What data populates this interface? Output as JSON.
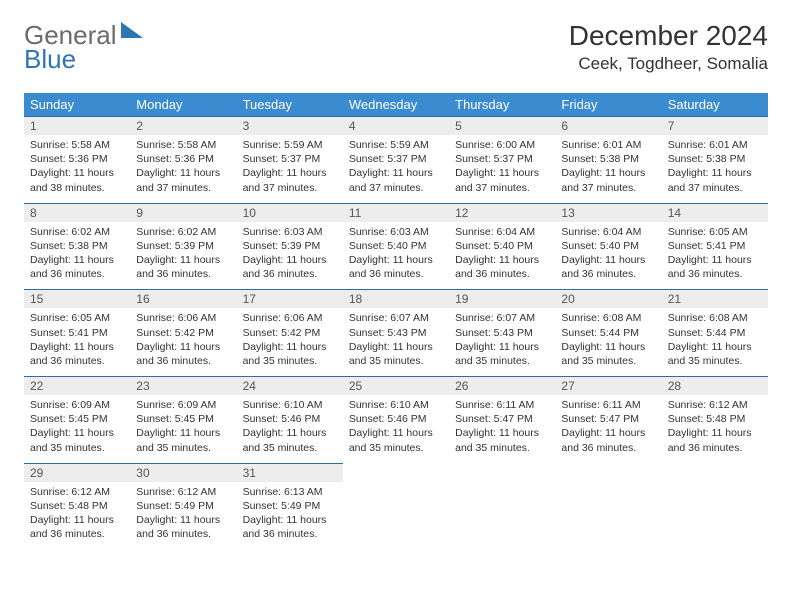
{
  "brand": {
    "word1": "General",
    "word2": "Blue"
  },
  "header": {
    "month_title": "December 2024",
    "location": "Ceek, Togdheer, Somalia"
  },
  "colors": {
    "header_bg": "#3a8bd0",
    "daynum_bg": "#ededed",
    "rule": "#2e6da4"
  },
  "weekdays": [
    "Sunday",
    "Monday",
    "Tuesday",
    "Wednesday",
    "Thursday",
    "Friday",
    "Saturday"
  ],
  "weeks": [
    [
      {
        "n": "1",
        "sunrise": "Sunrise: 5:58 AM",
        "sunset": "Sunset: 5:36 PM",
        "day": "Daylight: 11 hours and 38 minutes."
      },
      {
        "n": "2",
        "sunrise": "Sunrise: 5:58 AM",
        "sunset": "Sunset: 5:36 PM",
        "day": "Daylight: 11 hours and 37 minutes."
      },
      {
        "n": "3",
        "sunrise": "Sunrise: 5:59 AM",
        "sunset": "Sunset: 5:37 PM",
        "day": "Daylight: 11 hours and 37 minutes."
      },
      {
        "n": "4",
        "sunrise": "Sunrise: 5:59 AM",
        "sunset": "Sunset: 5:37 PM",
        "day": "Daylight: 11 hours and 37 minutes."
      },
      {
        "n": "5",
        "sunrise": "Sunrise: 6:00 AM",
        "sunset": "Sunset: 5:37 PM",
        "day": "Daylight: 11 hours and 37 minutes."
      },
      {
        "n": "6",
        "sunrise": "Sunrise: 6:01 AM",
        "sunset": "Sunset: 5:38 PM",
        "day": "Daylight: 11 hours and 37 minutes."
      },
      {
        "n": "7",
        "sunrise": "Sunrise: 6:01 AM",
        "sunset": "Sunset: 5:38 PM",
        "day": "Daylight: 11 hours and 37 minutes."
      }
    ],
    [
      {
        "n": "8",
        "sunrise": "Sunrise: 6:02 AM",
        "sunset": "Sunset: 5:38 PM",
        "day": "Daylight: 11 hours and 36 minutes."
      },
      {
        "n": "9",
        "sunrise": "Sunrise: 6:02 AM",
        "sunset": "Sunset: 5:39 PM",
        "day": "Daylight: 11 hours and 36 minutes."
      },
      {
        "n": "10",
        "sunrise": "Sunrise: 6:03 AM",
        "sunset": "Sunset: 5:39 PM",
        "day": "Daylight: 11 hours and 36 minutes."
      },
      {
        "n": "11",
        "sunrise": "Sunrise: 6:03 AM",
        "sunset": "Sunset: 5:40 PM",
        "day": "Daylight: 11 hours and 36 minutes."
      },
      {
        "n": "12",
        "sunrise": "Sunrise: 6:04 AM",
        "sunset": "Sunset: 5:40 PM",
        "day": "Daylight: 11 hours and 36 minutes."
      },
      {
        "n": "13",
        "sunrise": "Sunrise: 6:04 AM",
        "sunset": "Sunset: 5:40 PM",
        "day": "Daylight: 11 hours and 36 minutes."
      },
      {
        "n": "14",
        "sunrise": "Sunrise: 6:05 AM",
        "sunset": "Sunset: 5:41 PM",
        "day": "Daylight: 11 hours and 36 minutes."
      }
    ],
    [
      {
        "n": "15",
        "sunrise": "Sunrise: 6:05 AM",
        "sunset": "Sunset: 5:41 PM",
        "day": "Daylight: 11 hours and 36 minutes."
      },
      {
        "n": "16",
        "sunrise": "Sunrise: 6:06 AM",
        "sunset": "Sunset: 5:42 PM",
        "day": "Daylight: 11 hours and 36 minutes."
      },
      {
        "n": "17",
        "sunrise": "Sunrise: 6:06 AM",
        "sunset": "Sunset: 5:42 PM",
        "day": "Daylight: 11 hours and 35 minutes."
      },
      {
        "n": "18",
        "sunrise": "Sunrise: 6:07 AM",
        "sunset": "Sunset: 5:43 PM",
        "day": "Daylight: 11 hours and 35 minutes."
      },
      {
        "n": "19",
        "sunrise": "Sunrise: 6:07 AM",
        "sunset": "Sunset: 5:43 PM",
        "day": "Daylight: 11 hours and 35 minutes."
      },
      {
        "n": "20",
        "sunrise": "Sunrise: 6:08 AM",
        "sunset": "Sunset: 5:44 PM",
        "day": "Daylight: 11 hours and 35 minutes."
      },
      {
        "n": "21",
        "sunrise": "Sunrise: 6:08 AM",
        "sunset": "Sunset: 5:44 PM",
        "day": "Daylight: 11 hours and 35 minutes."
      }
    ],
    [
      {
        "n": "22",
        "sunrise": "Sunrise: 6:09 AM",
        "sunset": "Sunset: 5:45 PM",
        "day": "Daylight: 11 hours and 35 minutes."
      },
      {
        "n": "23",
        "sunrise": "Sunrise: 6:09 AM",
        "sunset": "Sunset: 5:45 PM",
        "day": "Daylight: 11 hours and 35 minutes."
      },
      {
        "n": "24",
        "sunrise": "Sunrise: 6:10 AM",
        "sunset": "Sunset: 5:46 PM",
        "day": "Daylight: 11 hours and 35 minutes."
      },
      {
        "n": "25",
        "sunrise": "Sunrise: 6:10 AM",
        "sunset": "Sunset: 5:46 PM",
        "day": "Daylight: 11 hours and 35 minutes."
      },
      {
        "n": "26",
        "sunrise": "Sunrise: 6:11 AM",
        "sunset": "Sunset: 5:47 PM",
        "day": "Daylight: 11 hours and 35 minutes."
      },
      {
        "n": "27",
        "sunrise": "Sunrise: 6:11 AM",
        "sunset": "Sunset: 5:47 PM",
        "day": "Daylight: 11 hours and 36 minutes."
      },
      {
        "n": "28",
        "sunrise": "Sunrise: 6:12 AM",
        "sunset": "Sunset: 5:48 PM",
        "day": "Daylight: 11 hours and 36 minutes."
      }
    ],
    [
      {
        "n": "29",
        "sunrise": "Sunrise: 6:12 AM",
        "sunset": "Sunset: 5:48 PM",
        "day": "Daylight: 11 hours and 36 minutes."
      },
      {
        "n": "30",
        "sunrise": "Sunrise: 6:12 AM",
        "sunset": "Sunset: 5:49 PM",
        "day": "Daylight: 11 hours and 36 minutes."
      },
      {
        "n": "31",
        "sunrise": "Sunrise: 6:13 AM",
        "sunset": "Sunset: 5:49 PM",
        "day": "Daylight: 11 hours and 36 minutes."
      },
      null,
      null,
      null,
      null
    ]
  ]
}
